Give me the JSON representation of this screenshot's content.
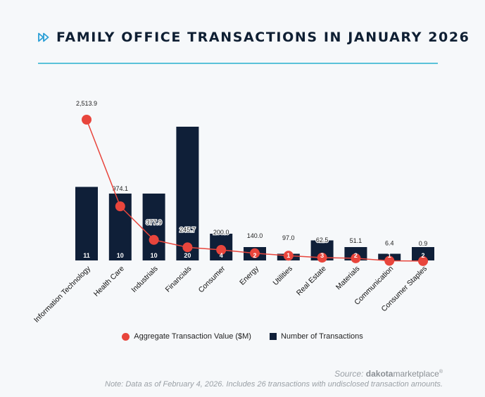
{
  "title": "FAMILY OFFICE TRANSACTIONS IN JANUARY 2026",
  "colors": {
    "bar": "#0f1f38",
    "line": "#e8453c",
    "accent_rule": "#5bc2d9",
    "title": "#0f1f33"
  },
  "icon": "fast-forward-icon",
  "chart_data": {
    "type": "bar",
    "categories": [
      "Information Technology",
      "Health Care",
      "Industrials",
      "Financials",
      "Consumer",
      "Energy",
      "Utilities",
      "Real Estate",
      "Materials",
      "Communication",
      "Consumer Staples"
    ],
    "series": [
      {
        "name": "Number of Transactions",
        "type": "bar",
        "values": [
          11,
          10,
          10,
          20,
          4,
          2,
          1,
          3,
          2,
          1,
          2
        ]
      },
      {
        "name": "Aggregate Transaction Value ($M)",
        "type": "line",
        "values": [
          2513.9,
          974.1,
          377.9,
          245.7,
          200.0,
          140.0,
          97.0,
          62.5,
          51.1,
          6.4,
          0.9
        ]
      }
    ],
    "value_labels": [
      "2,513.9",
      "974.1",
      "377.9",
      "245.7",
      "200.0",
      "140.0",
      "97.0",
      "62.5",
      "51.1",
      "6.4",
      "0.9"
    ],
    "bar_ylim": [
      0,
      20
    ],
    "line_ylim": [
      0,
      2513.9
    ],
    "legend_position": "bottom"
  },
  "legend": {
    "line_label": "Aggregate Transaction Value ($M)",
    "bar_label": "Number of Transactions"
  },
  "source": {
    "prefix": "Source:",
    "brand_bold": "dakota",
    "brand_light": "marketplace",
    "trademark": "®"
  },
  "note": "Note: Data as of February 4, 2026. Includes 26 transactions with undisclosed transaction amounts."
}
